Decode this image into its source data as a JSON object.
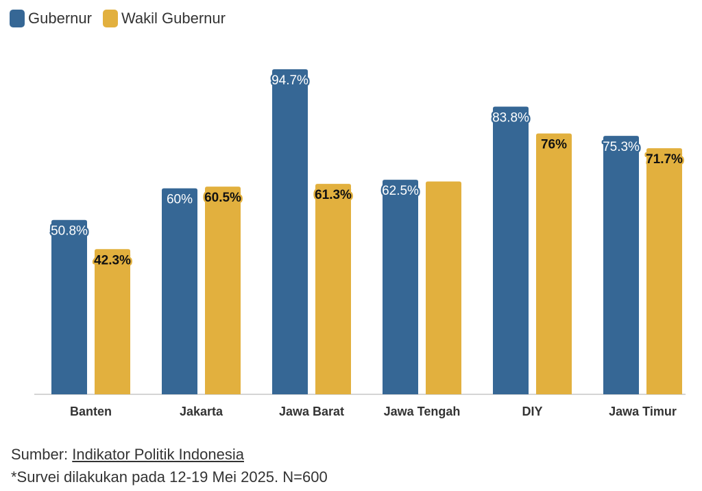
{
  "legend": [
    {
      "name": "Gubernur",
      "color": "#366795"
    },
    {
      "name": "Wakil Gubernur",
      "color": "#e2b03e"
    }
  ],
  "chart_data": {
    "type": "bar",
    "categories": [
      "Banten",
      "Jakarta",
      "Jawa Barat",
      "Jawa Tengah",
      "DIY",
      "Jawa Timur"
    ],
    "series": [
      {
        "name": "Gubernur",
        "color": "#366795",
        "values": [
          50.8,
          60,
          94.7,
          62.5,
          83.8,
          75.3
        ],
        "labels": [
          "50.8%",
          "60%",
          "94.7%",
          "62.5%",
          "83.8%",
          "75.3%"
        ]
      },
      {
        "name": "Wakil Gubernur",
        "color": "#e2b03e",
        "values": [
          42.3,
          60.5,
          61.3,
          62.0,
          76,
          71.7
        ],
        "labels": [
          "42.3%",
          "60.5%",
          "61.3%",
          "",
          "76%",
          "71.7%"
        ]
      }
    ],
    "ylim": [
      0,
      100
    ],
    "grid": false,
    "legend_position": "top-left"
  },
  "footer": {
    "source_prefix": "Sumber: ",
    "source_link": "Indikator Politik Indonesia",
    "note": "*Survei dilakukan pada 12-19 Mei 2025. N=600"
  }
}
